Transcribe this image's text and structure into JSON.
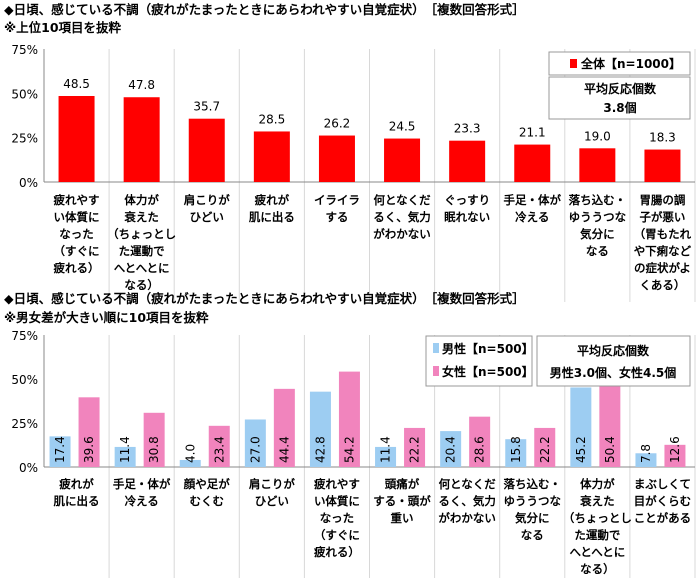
{
  "chart_data": [
    {
      "type": "bar",
      "title": "◆日頃、感じている不調（疲れがたまったときにあらわれやすい自覚症状）　［複数回答形式］",
      "subtitle": "※上位10項目を抜粋",
      "categories": [
        [
          "疲れやす",
          "い体質に",
          "なった",
          "（すぐに",
          "疲れる）"
        ],
        [
          "体力が",
          "衰えた",
          "（ちょっとし",
          "た運動で",
          "へとへとに",
          "なる）"
        ],
        [
          "肩こりが",
          "ひどい"
        ],
        [
          "疲れが",
          "肌に出る"
        ],
        [
          "イライラ",
          "する"
        ],
        [
          "何となくだ",
          "るく、気力",
          "がわかない"
        ],
        [
          "ぐっすり",
          "眠れない"
        ],
        [
          "手足・体が",
          "冷える"
        ],
        [
          "落ち込む・",
          "ゆううつな",
          "気分に",
          "なる"
        ],
        [
          "胃腸の調",
          "子が悪い",
          "（胃もたれ",
          "や下痢など",
          "の症状がよ",
          "くある）"
        ]
      ],
      "series": [
        {
          "name": "全体【n=1000】",
          "color": "#ff0000",
          "values": [
            48.5,
            47.8,
            35.7,
            28.5,
            26.2,
            24.5,
            23.3,
            21.1,
            19.0,
            18.3
          ]
        }
      ],
      "value_labels": [
        "48.5",
        "47.8",
        "35.7",
        "28.5",
        "26.2",
        "24.5",
        "23.3",
        "21.1",
        "19.0",
        "18.3"
      ],
      "ylim": [
        0,
        75
      ],
      "yticks": [
        "0%",
        "25%",
        "50%",
        "75%"
      ],
      "grid": "vertical separators between categories",
      "legend": "top-right",
      "note": [
        "平均反応個数",
        "3.8個"
      ]
    },
    {
      "type": "bar",
      "title": "◆日頃、感じている不調（疲れがたまったときにあらわれやすい自覚症状）　［複数回答形式］",
      "subtitle": "※男女差が大きい順に10項目を抜粋",
      "categories": [
        [
          "疲れが",
          "肌に出る"
        ],
        [
          "手足・体が",
          "冷える"
        ],
        [
          "顔や足が",
          "むくむ"
        ],
        [
          "肩こりが",
          "ひどい"
        ],
        [
          "疲れやす",
          "い体質に",
          "なった",
          "（すぐに",
          "疲れる）"
        ],
        [
          "頭痛が",
          "する・頭が",
          "重い"
        ],
        [
          "何となくだ",
          "るく、気力",
          "がわかない"
        ],
        [
          "落ち込む・",
          "ゆううつな",
          "気分に",
          "なる"
        ],
        [
          "体力が",
          "衰えた",
          "（ちょっとし",
          "た運動で",
          "へとへとに",
          "なる）"
        ],
        [
          "まぶしくて",
          "目がくらむ",
          "ことがある"
        ]
      ],
      "series": [
        {
          "name": "男性【n=500】",
          "color": "#9dcdf2",
          "values": [
            17.4,
            11.4,
            4.0,
            27.0,
            42.8,
            11.4,
            20.4,
            15.8,
            45.2,
            7.8
          ],
          "value_labels": [
            "17.4",
            "11.4",
            "4.0",
            "27.0",
            "42.8",
            "11.4",
            "20.4",
            "15.8",
            "45.2",
            "7.8"
          ]
        },
        {
          "name": "女性【n=500】",
          "color": "#f184bd",
          "values": [
            39.6,
            30.8,
            23.4,
            44.4,
            54.2,
            22.2,
            28.6,
            22.2,
            50.4,
            12.6
          ],
          "value_labels": [
            "39.6",
            "30.8",
            "23.4",
            "44.4",
            "54.2",
            "22.2",
            "28.6",
            "22.2",
            "50.4",
            "12.6"
          ]
        }
      ],
      "ylim": [
        0,
        75
      ],
      "yticks": [
        "0%",
        "25%",
        "50%",
        "75%"
      ],
      "grid": "vertical separators between categories",
      "legend": "top-right",
      "note": [
        "平均反応個数",
        "男性3.0個、女性4.5個"
      ]
    }
  ]
}
